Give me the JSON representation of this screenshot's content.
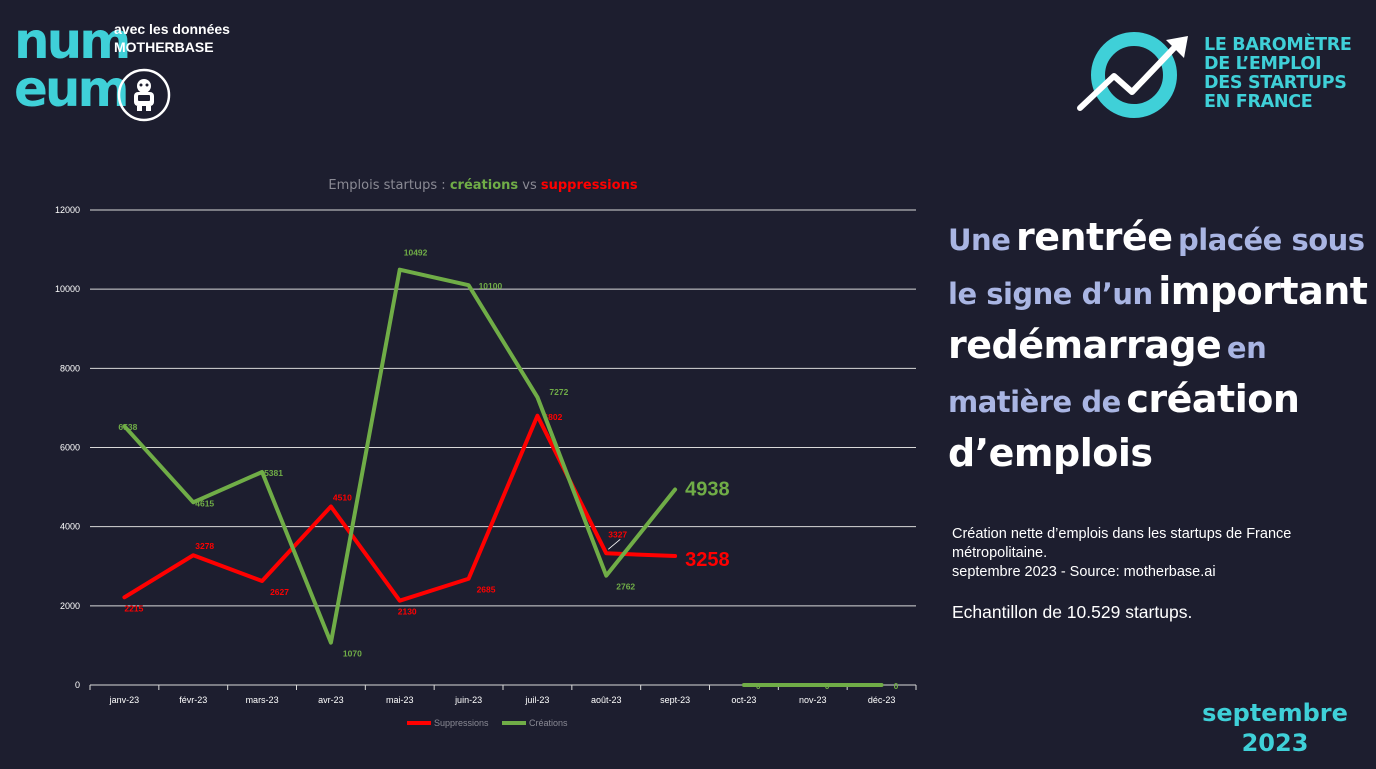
{
  "header": {
    "logo_top": "num",
    "logo_bottom": "eum",
    "partner_line1": "avec les données",
    "partner_line2": "MOTHERBASE"
  },
  "barometre": {
    "line1": "LE BAROMÈTRE",
    "line2": "DE L’EMPLOI",
    "line3": "DES STARTUPS",
    "line4": "EN FRANCE"
  },
  "chart_data": {
    "type": "line",
    "title_prefix": "Emplois startups : ",
    "title_creations": "créations",
    "title_vs": " vs ",
    "title_suppressions": "suppressions",
    "categories": [
      "janv-23",
      "févr-23",
      "mars-23",
      "avr-23",
      "mai-23",
      "juin-23",
      "juil-23",
      "août-23",
      "sept-23",
      "oct-23",
      "nov-23",
      "déc-23"
    ],
    "ylim": [
      0,
      12000
    ],
    "yticks": [
      0,
      2000,
      4000,
      6000,
      8000,
      10000,
      12000
    ],
    "grid": true,
    "legend_position": "bottom",
    "series": [
      {
        "name": "Suppressions",
        "color": "#ff0000",
        "values": [
          2215,
          3278,
          2627,
          4510,
          2130,
          2685,
          6802,
          3327,
          3258,
          null,
          null,
          null
        ]
      },
      {
        "name": "Créations",
        "color": "#70ad47",
        "values": [
          6538,
          4615,
          5381,
          1070,
          10492,
          10100,
          7272,
          2762,
          4938,
          0,
          0,
          0
        ]
      }
    ],
    "highlight": {
      "suppressions_last": "3258",
      "creations_last": "4938"
    }
  },
  "headline": {
    "w1": "Une",
    "w2": "rentrée",
    "w3": "placée sous",
    "w4": "le signe d’un",
    "w5": "important",
    "w6": "redémarrage",
    "w7": "en",
    "w8": "matière de",
    "w9": "création",
    "w10": "d’emplois"
  },
  "description": {
    "line1": "Création nette d’emplois dans les startups de France",
    "line2": "métropolitaine.",
    "line3": "septembre 2023 - Source: motherbase.ai",
    "sample": "Echantillon de 10.529 startups."
  },
  "date_badge": {
    "month": "septembre",
    "year": "2023"
  }
}
